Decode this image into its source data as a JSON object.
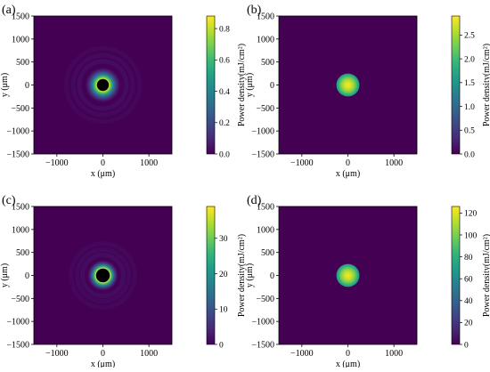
{
  "chart_data": [
    {
      "type": "heatmap",
      "panel_label": "(a)",
      "xlabel": "x (μm)",
      "ylabel": "y (μm)",
      "xlim": [
        -1500,
        1500
      ],
      "ylim": [
        -1500,
        1500
      ],
      "xticks": [
        "−1000",
        "0",
        "1000"
      ],
      "yticks": [
        "1500",
        "1000",
        "500",
        "0",
        "−500",
        "−1000",
        "−1500"
      ],
      "colorbar": {
        "label": "Power density(mJ/cm²)",
        "range": [
          0,
          0.88
        ],
        "ticks": [
          "0.0",
          "0.2",
          "0.4",
          "0.6",
          "0.8"
        ],
        "tick_values": [
          0,
          0.2,
          0.4,
          0.6,
          0.8
        ]
      },
      "pattern": "ring",
      "hole_radius_um": 130,
      "ring_peak_value": 0.85,
      "ring_outer_radius_um": 380
    },
    {
      "type": "heatmap",
      "panel_label": "(b)",
      "xlabel": "x (μm)",
      "ylabel": "y (μm)",
      "xlim": [
        -1500,
        1500
      ],
      "ylim": [
        -1500,
        1500
      ],
      "xticks": [
        "−1000",
        "0",
        "1000"
      ],
      "yticks": [
        "1500",
        "1000",
        "500",
        "0",
        "−500",
        "−1000",
        "−1500"
      ],
      "colorbar": {
        "label": "Power density(mJ/cm²)",
        "range": [
          0,
          2.9
        ],
        "ticks": [
          "0.0",
          "0.5",
          "1.0",
          "1.5",
          "2.0",
          "2.5"
        ],
        "tick_values": [
          0,
          0.5,
          1.0,
          1.5,
          2.0,
          2.5
        ]
      },
      "pattern": "spot",
      "spot_radius_um": 250,
      "peak_value": 2.9
    },
    {
      "type": "heatmap",
      "panel_label": "(c)",
      "xlabel": "x (μm)",
      "ylabel": "y (μm)",
      "xlim": [
        -1500,
        1500
      ],
      "ylim": [
        -1500,
        1500
      ],
      "xticks": [
        "−1000",
        "0",
        "1000"
      ],
      "yticks": [
        "1500",
        "1000",
        "500",
        "0",
        "−500",
        "−1000",
        "−1500"
      ],
      "colorbar": {
        "label": "Power density(mJ/cm²)",
        "range": [
          0,
          39
        ],
        "ticks": [
          "0",
          "10",
          "20",
          "30"
        ],
        "tick_values": [
          0,
          10,
          20,
          30
        ]
      },
      "pattern": "ring",
      "hole_radius_um": 150,
      "ring_peak_value": 38,
      "ring_outer_radius_um": 330
    },
    {
      "type": "heatmap",
      "panel_label": "(d)",
      "xlabel": "x (μm)",
      "ylabel": "y (μm)",
      "xlim": [
        -1500,
        1500
      ],
      "ylim": [
        -1500,
        1500
      ],
      "xticks": [
        "−1000",
        "0",
        "1000"
      ],
      "yticks": [
        "1500",
        "1000",
        "500",
        "0",
        "−500",
        "−1000",
        "−1500"
      ],
      "colorbar": {
        "label": "Power density(mJ/cm²)",
        "range": [
          0,
          126
        ],
        "ticks": [
          "0",
          "20",
          "40",
          "60",
          "80",
          "100",
          "120"
        ],
        "tick_values": [
          0,
          20,
          40,
          60,
          80,
          100,
          120
        ]
      },
      "pattern": "spot",
      "spot_radius_um": 250,
      "peak_value": 125
    }
  ],
  "colors": {
    "background": "#440154",
    "colormap": [
      "#440154",
      "#482878",
      "#3e4989",
      "#31688e",
      "#26828e",
      "#1f9e89",
      "#35b779",
      "#6ece58",
      "#b5de2b",
      "#fde725"
    ]
  }
}
